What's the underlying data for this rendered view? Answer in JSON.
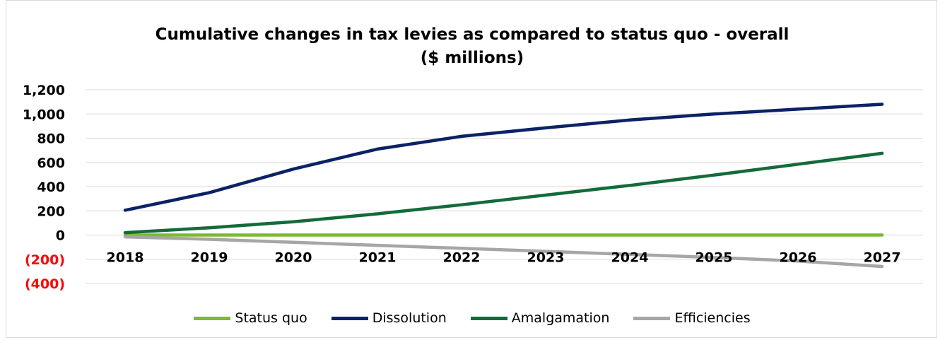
{
  "chart_data": {
    "type": "line",
    "title_lines": [
      "Cumulative changes in tax levies as compared to status quo - overall",
      "($ millions)"
    ],
    "xlabel": "",
    "ylabel": "",
    "categories": [
      "2018",
      "2019",
      "2020",
      "2021",
      "2022",
      "2023",
      "2024",
      "2025",
      "2026",
      "2027"
    ],
    "ylim": [
      -400,
      1200
    ],
    "yticks": [
      {
        "value": 1200,
        "label": "1,200",
        "color": "#000000"
      },
      {
        "value": 1000,
        "label": "1,000",
        "color": "#000000"
      },
      {
        "value": 800,
        "label": "800",
        "color": "#000000"
      },
      {
        "value": 600,
        "label": "600",
        "color": "#000000"
      },
      {
        "value": 400,
        "label": "400",
        "color": "#000000"
      },
      {
        "value": 200,
        "label": "200",
        "color": "#000000"
      },
      {
        "value": 0,
        "label": "0",
        "color": "#000000"
      },
      {
        "value": -200,
        "label": "(200)",
        "color": "#ff0000"
      },
      {
        "value": -400,
        "label": "(400)",
        "color": "#ff0000"
      }
    ],
    "grid": true,
    "legend_position": "bottom",
    "series": [
      {
        "name": "Status quo",
        "color": "#7cbb2e",
        "values": [
          0,
          0,
          0,
          0,
          0,
          0,
          0,
          0,
          0,
          0
        ]
      },
      {
        "name": "Dissolution",
        "color": "#0c2266",
        "values": [
          205,
          350,
          545,
          710,
          815,
          885,
          950,
          1000,
          1040,
          1080
        ]
      },
      {
        "name": "Amalgamation",
        "color": "#136b3a",
        "values": [
          20,
          60,
          110,
          175,
          250,
          330,
          410,
          495,
          585,
          675
        ]
      },
      {
        "name": "Efficiencies",
        "color": "#a6a6a6",
        "values": [
          -15,
          -35,
          -60,
          -85,
          -110,
          -135,
          -160,
          -185,
          -215,
          -260
        ]
      }
    ]
  }
}
